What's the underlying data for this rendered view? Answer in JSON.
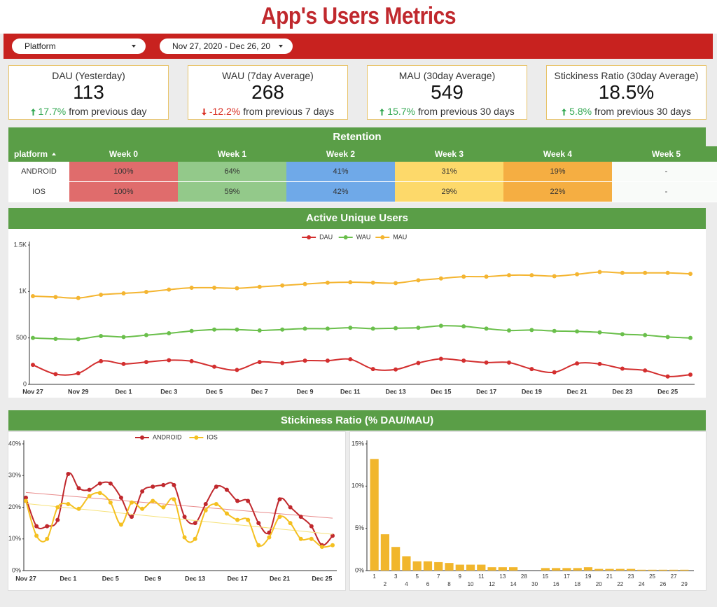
{
  "header": {
    "title": "App's Users Metrics"
  },
  "filters": [
    {
      "label": "Platform"
    },
    {
      "label": "Nov 27, 2020 - Dec 26, 20"
    }
  ],
  "kpis": [
    {
      "label": "DAU (Yesterday)",
      "value": "113",
      "change": "17.7%",
      "direction": "up",
      "comparison": "from previous day"
    },
    {
      "label": "WAU (7day Average)",
      "value": "268",
      "change": "-12.2%",
      "direction": "down",
      "comparison": "from previous 7 days"
    },
    {
      "label": "MAU (30day Average)",
      "value": "549",
      "change": "15.7%",
      "direction": "up",
      "comparison": "from previous 30 days"
    },
    {
      "label": "Stickiness Ratio (30day Average)",
      "value": "18.5%",
      "change": "5.8%",
      "direction": "up",
      "comparison": "from previous 30 days"
    }
  ],
  "retention": {
    "title": "Retention",
    "columns": [
      "platform",
      "Week 0",
      "Week 1",
      "Week 2",
      "Week 3",
      "Week 4",
      "Week 5"
    ],
    "column_colors": [
      "#e06c6c",
      "#93c98a",
      "#6fa9e8",
      "#fdd96a",
      "#f5ae42",
      "#f9fbf9"
    ],
    "rows": [
      [
        "ANDROID",
        "100%",
        "64%",
        "41%",
        "31%",
        "19%",
        "-"
      ],
      [
        "IOS",
        "100%",
        "59%",
        "42%",
        "29%",
        "22%",
        "-"
      ]
    ]
  },
  "chart_data": [
    {
      "type": "line",
      "title": "Active Unique Users",
      "smooth": true,
      "legend": "top",
      "grid": false,
      "categories": [
        "Nov 27",
        null,
        "Nov 29",
        null,
        "Dec 1",
        null,
        "Dec 3",
        null,
        "Dec 5",
        null,
        "Dec 7",
        null,
        "Dec 9",
        null,
        "Dec 11",
        null,
        "Dec 13",
        null,
        "Dec 15",
        null,
        "Dec 17",
        null,
        "Dec 19",
        null,
        "Dec 21",
        null,
        "Dec 23",
        null,
        "Dec 25",
        null
      ],
      "ylim": [
        0,
        1500
      ],
      "yticks": [
        0,
        500,
        {
          "value": 1000,
          "label": "1K"
        },
        {
          "value": 1500,
          "label": "1.5K"
        }
      ],
      "series": [
        {
          "name": "DAU",
          "color": "#d32f2f",
          "values": [
            210,
            110,
            120,
            250,
            220,
            240,
            260,
            250,
            190,
            155,
            240,
            230,
            255,
            255,
            270,
            165,
            160,
            230,
            275,
            255,
            235,
            235,
            165,
            130,
            225,
            220,
            170,
            150,
            85,
            105
          ]
        },
        {
          "name": "WAU",
          "color": "#6abf4b",
          "values": [
            500,
            490,
            487,
            520,
            510,
            530,
            550,
            575,
            590,
            590,
            580,
            590,
            600,
            600,
            610,
            600,
            605,
            610,
            630,
            625,
            600,
            580,
            585,
            575,
            570,
            560,
            540,
            530,
            510,
            500
          ]
        },
        {
          "name": "MAU",
          "color": "#f4b531",
          "values": [
            950,
            940,
            930,
            965,
            980,
            995,
            1020,
            1040,
            1040,
            1035,
            1050,
            1065,
            1080,
            1095,
            1100,
            1095,
            1090,
            1120,
            1140,
            1160,
            1160,
            1175,
            1175,
            1165,
            1185,
            1210,
            1200,
            1200,
            1200,
            1190
          ]
        }
      ]
    },
    {
      "type": "line",
      "title": "Stickiness Ratio (% DAU/MAU)",
      "smooth": true,
      "legend": "top",
      "grid": false,
      "trendline": true,
      "categories": [
        "Nov 27",
        null,
        null,
        null,
        "Dec 1",
        null,
        null,
        null,
        "Dec 5",
        null,
        null,
        null,
        "Dec 9",
        null,
        null,
        null,
        "Dec 13",
        null,
        null,
        null,
        "Dec 17",
        null,
        null,
        null,
        "Dec 21",
        null,
        null,
        null,
        "Dec 25",
        null
      ],
      "ylim": [
        0,
        40
      ],
      "yticks": [
        {
          "value": 0,
          "label": "0%"
        },
        {
          "value": 10,
          "label": "10%"
        },
        {
          "value": 20,
          "label": "20%"
        },
        {
          "value": 30,
          "label": "30%"
        },
        {
          "value": 40,
          "label": "40%"
        }
      ],
      "series": [
        {
          "name": "ANDROID",
          "color": "#c0282d",
          "trend_color": "#e88a8a",
          "values": [
            23,
            14,
            14,
            16,
            30.5,
            26,
            25.5,
            27.5,
            27.5,
            23,
            17,
            25,
            26.5,
            27,
            27,
            17,
            15,
            21,
            26.5,
            25.5,
            22,
            22,
            15,
            12,
            22.5,
            20,
            17,
            14,
            8,
            11
          ]
        },
        {
          "name": "IOS",
          "color": "#f4c020",
          "trend_color": "#f6e27a",
          "values": [
            22,
            11,
            10,
            20,
            21,
            19.5,
            23.5,
            24.5,
            21.5,
            14.5,
            21.5,
            19.5,
            22,
            20,
            22.5,
            10.5,
            10,
            19,
            21,
            18,
            16,
            16,
            8,
            10.5,
            17,
            15,
            10,
            10,
            7.5,
            8
          ]
        }
      ]
    },
    {
      "type": "bar",
      "color": "#f1b62c",
      "grid": false,
      "categories": [
        "1",
        "2",
        "3",
        "4",
        "5",
        "6",
        "7",
        "8",
        "9",
        "10",
        "11",
        "12",
        "13",
        "14",
        "28",
        "30",
        "15",
        "16",
        "17",
        "18",
        "19",
        "20",
        "21",
        "22",
        "23",
        "24",
        "25",
        "26",
        "27",
        "29"
      ],
      "values": [
        13.2,
        4.3,
        2.8,
        1.7,
        1.1,
        1.1,
        1.0,
        0.9,
        0.7,
        0.7,
        0.7,
        0.4,
        0.4,
        0.4,
        0,
        0,
        0.3,
        0.3,
        0.3,
        0.3,
        0.4,
        0.2,
        0.2,
        0.2,
        0.2,
        0.1,
        0.1,
        0.1,
        0.1,
        0.1
      ],
      "ylim": [
        0,
        15
      ],
      "yticks": [
        {
          "value": 0,
          "label": "0%"
        },
        {
          "value": 5,
          "label": "5%"
        },
        {
          "value": 10,
          "label": "10%"
        },
        {
          "value": 15,
          "label": "15%"
        }
      ]
    }
  ]
}
